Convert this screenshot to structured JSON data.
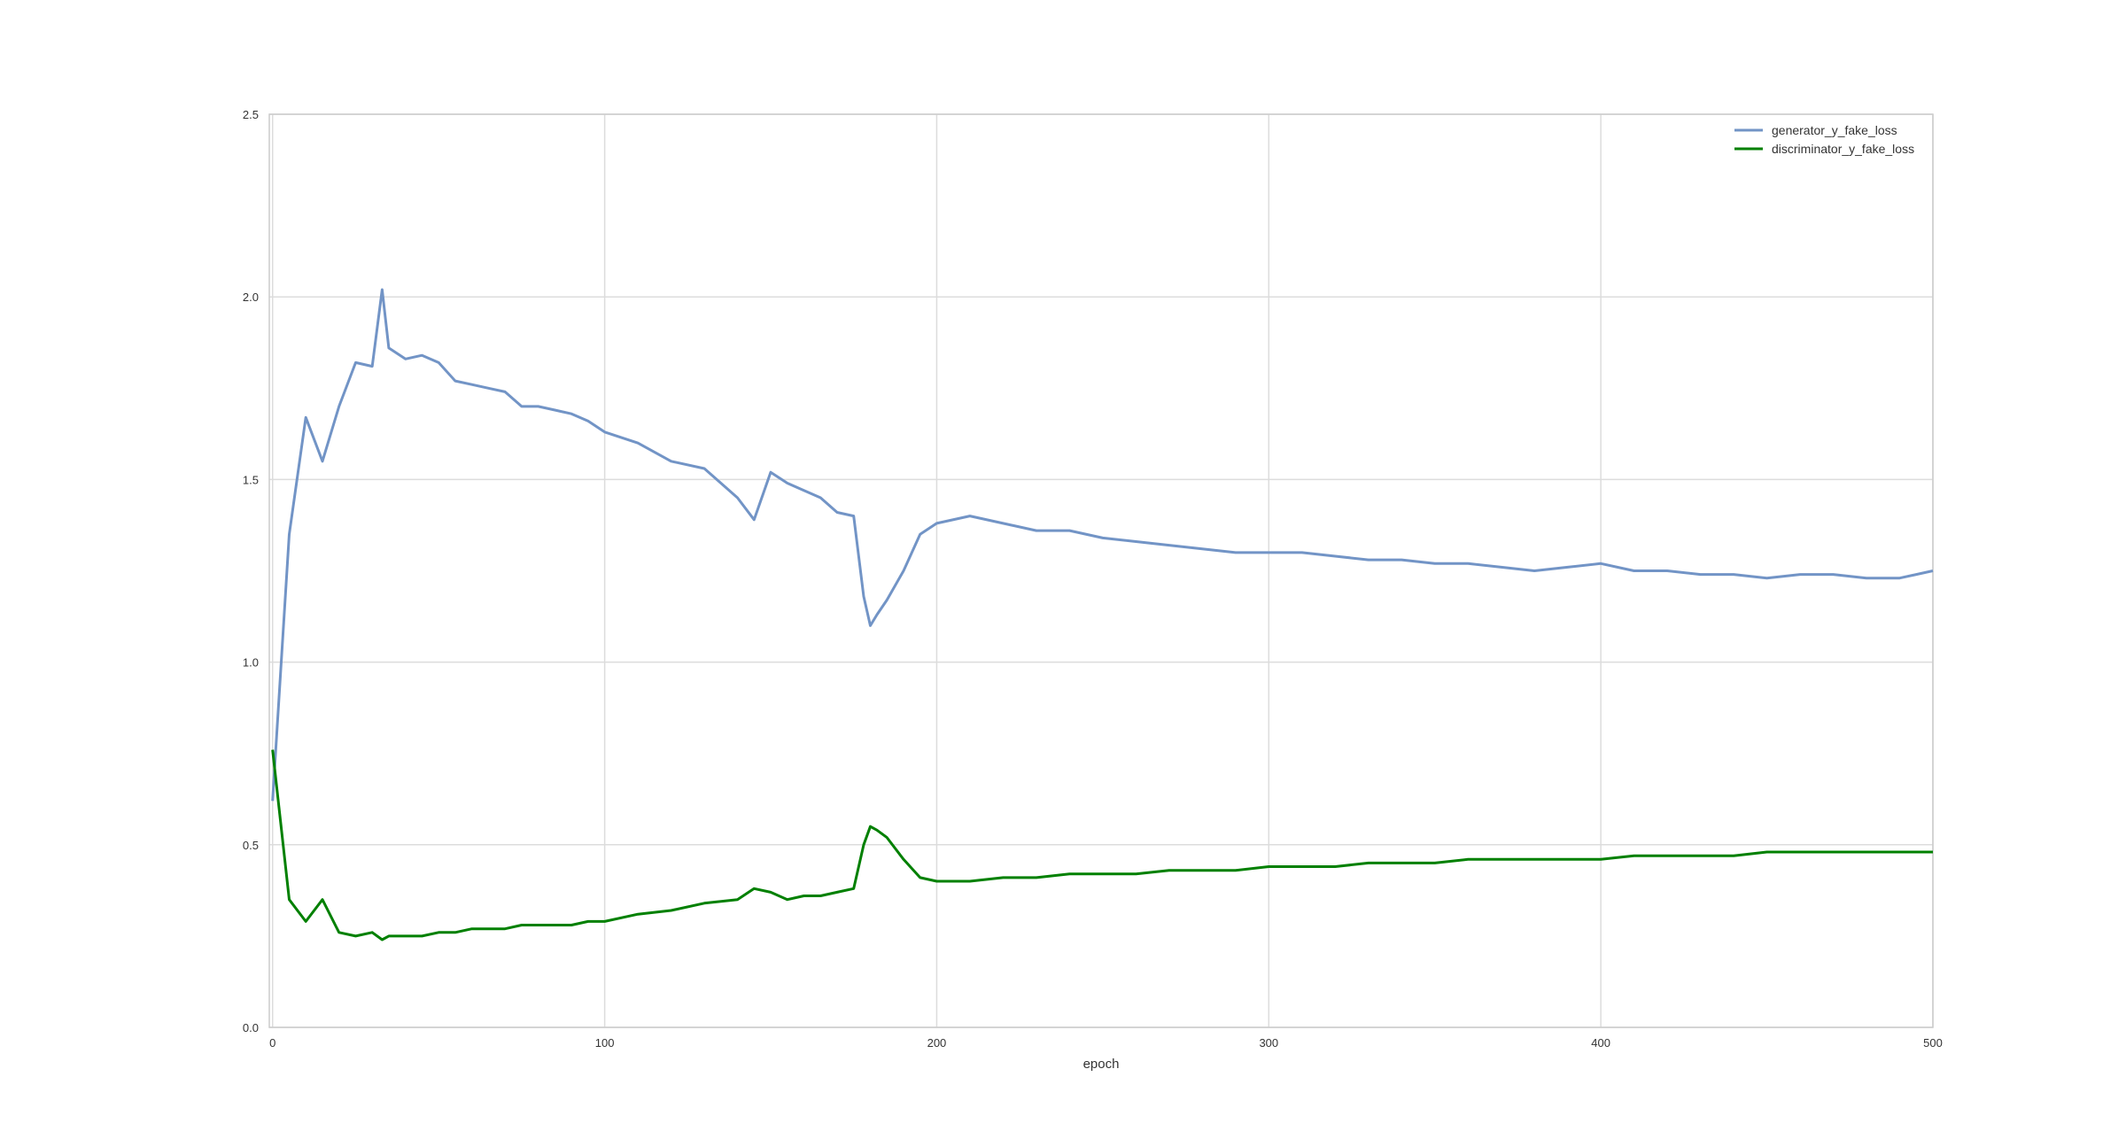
{
  "chart_data": {
    "type": "line",
    "title": "",
    "xlabel": "epoch",
    "ylabel": "",
    "xlim": [
      -1,
      500
    ],
    "ylim": [
      0.0,
      2.5
    ],
    "x_ticks": [
      0,
      100,
      200,
      300,
      400,
      500
    ],
    "x_tick_labels": [
      "0",
      "100",
      "200",
      "300",
      "400",
      "500"
    ],
    "y_ticks": [
      0.0,
      0.5,
      1.0,
      1.5,
      2.0,
      2.5
    ],
    "y_tick_labels": [
      "0.0",
      "0.5",
      "1.0",
      "1.5",
      "2.0",
      "2.5"
    ],
    "grid": true,
    "legend_position": "top-right",
    "x": [
      0,
      5,
      10,
      15,
      20,
      25,
      30,
      33,
      35,
      40,
      45,
      50,
      55,
      60,
      65,
      70,
      75,
      80,
      85,
      90,
      95,
      100,
      110,
      120,
      130,
      140,
      145,
      150,
      155,
      160,
      165,
      170,
      175,
      178,
      180,
      182,
      185,
      190,
      195,
      200,
      210,
      220,
      230,
      240,
      250,
      260,
      270,
      280,
      290,
      300,
      310,
      320,
      330,
      340,
      350,
      360,
      370,
      380,
      390,
      400,
      410,
      420,
      430,
      440,
      450,
      460,
      470,
      480,
      490,
      500
    ],
    "series": [
      {
        "name": "generator_y_fake_loss",
        "color": "#7294c6",
        "values": [
          0.62,
          1.35,
          1.67,
          1.55,
          1.7,
          1.82,
          1.81,
          2.02,
          1.86,
          1.83,
          1.84,
          1.82,
          1.77,
          1.76,
          1.75,
          1.74,
          1.7,
          1.7,
          1.69,
          1.68,
          1.66,
          1.63,
          1.6,
          1.55,
          1.53,
          1.45,
          1.39,
          1.52,
          1.49,
          1.47,
          1.45,
          1.41,
          1.4,
          1.18,
          1.1,
          1.13,
          1.17,
          1.25,
          1.35,
          1.38,
          1.4,
          1.38,
          1.36,
          1.36,
          1.34,
          1.33,
          1.32,
          1.31,
          1.3,
          1.3,
          1.3,
          1.29,
          1.28,
          1.28,
          1.27,
          1.27,
          1.26,
          1.25,
          1.26,
          1.27,
          1.25,
          1.25,
          1.24,
          1.24,
          1.23,
          1.24,
          1.24,
          1.23,
          1.23,
          1.25
        ]
      },
      {
        "name": "discriminator_y_fake_loss",
        "color": "#008000",
        "values": [
          0.76,
          0.35,
          0.29,
          0.35,
          0.26,
          0.25,
          0.26,
          0.24,
          0.25,
          0.25,
          0.25,
          0.26,
          0.26,
          0.27,
          0.27,
          0.27,
          0.28,
          0.28,
          0.28,
          0.28,
          0.29,
          0.29,
          0.31,
          0.32,
          0.34,
          0.35,
          0.38,
          0.37,
          0.35,
          0.36,
          0.36,
          0.37,
          0.38,
          0.5,
          0.55,
          0.54,
          0.52,
          0.46,
          0.41,
          0.4,
          0.4,
          0.41,
          0.41,
          0.42,
          0.42,
          0.42,
          0.43,
          0.43,
          0.43,
          0.44,
          0.44,
          0.44,
          0.45,
          0.45,
          0.45,
          0.46,
          0.46,
          0.46,
          0.46,
          0.46,
          0.47,
          0.47,
          0.47,
          0.47,
          0.48,
          0.48,
          0.48,
          0.48,
          0.48,
          0.48
        ]
      }
    ]
  }
}
